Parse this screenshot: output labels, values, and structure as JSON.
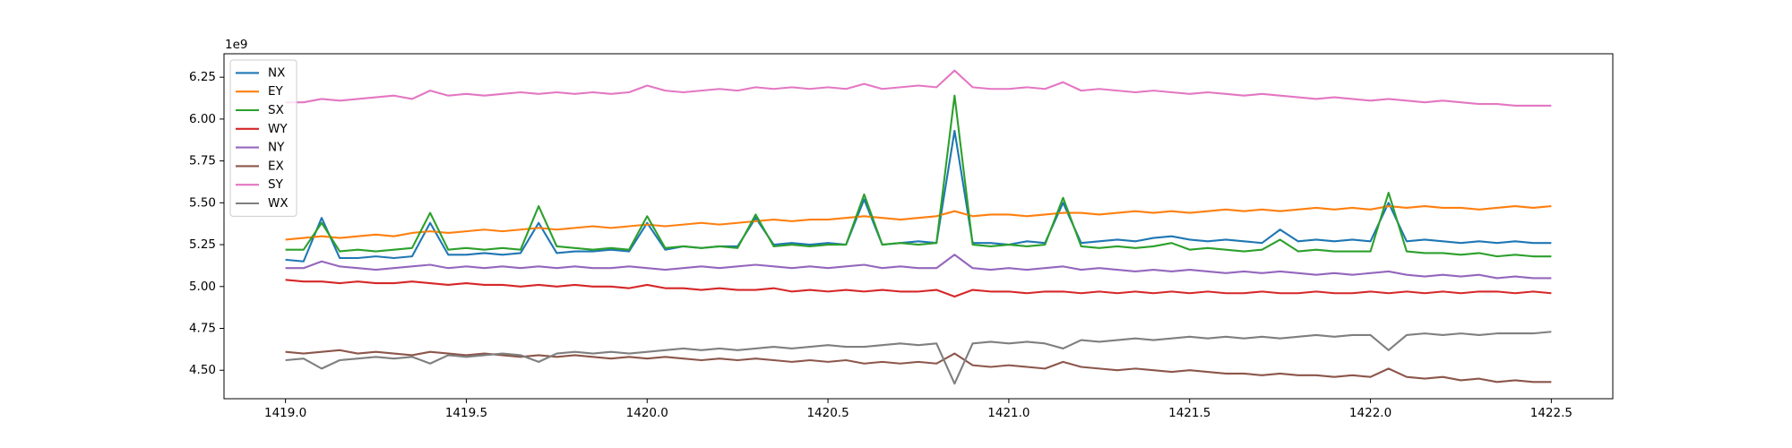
{
  "chart_data": {
    "type": "line",
    "offset_label": "1e9",
    "x": [
      1419.0,
      1419.05,
      1419.1,
      1419.15,
      1419.2,
      1419.25,
      1419.3,
      1419.35,
      1419.4,
      1419.45,
      1419.5,
      1419.55,
      1419.6,
      1419.65,
      1419.7,
      1419.75,
      1419.8,
      1419.85,
      1419.9,
      1419.95,
      1420.0,
      1420.05,
      1420.1,
      1420.15,
      1420.2,
      1420.25,
      1420.3,
      1420.35,
      1420.4,
      1420.45,
      1420.5,
      1420.55,
      1420.6,
      1420.65,
      1420.7,
      1420.75,
      1420.8,
      1420.85,
      1420.9,
      1420.95,
      1421.0,
      1421.05,
      1421.1,
      1421.15,
      1421.2,
      1421.25,
      1421.3,
      1421.35,
      1421.4,
      1421.45,
      1421.5,
      1421.55,
      1421.6,
      1421.65,
      1421.7,
      1421.75,
      1421.8,
      1421.85,
      1421.9,
      1421.95,
      1422.0,
      1422.05,
      1422.1,
      1422.15,
      1422.2,
      1422.25,
      1422.3,
      1422.35,
      1422.4,
      1422.45,
      1422.5
    ],
    "series": [
      {
        "name": "NX",
        "color": "#1f77b4",
        "values": [
          5.16,
          5.15,
          5.41,
          5.17,
          5.17,
          5.18,
          5.17,
          5.18,
          5.38,
          5.19,
          5.19,
          5.2,
          5.19,
          5.2,
          5.38,
          5.2,
          5.21,
          5.21,
          5.22,
          5.21,
          5.38,
          5.22,
          5.24,
          5.23,
          5.24,
          5.24,
          5.41,
          5.25,
          5.26,
          5.25,
          5.26,
          5.25,
          5.52,
          5.25,
          5.26,
          5.27,
          5.26,
          5.93,
          5.26,
          5.26,
          5.25,
          5.27,
          5.26,
          5.5,
          5.26,
          5.27,
          5.28,
          5.27,
          5.29,
          5.3,
          5.28,
          5.27,
          5.28,
          5.27,
          5.26,
          5.34,
          5.27,
          5.28,
          5.27,
          5.28,
          5.27,
          5.5,
          5.27,
          5.28,
          5.27,
          5.26,
          5.27,
          5.26,
          5.27,
          5.26,
          5.26
        ]
      },
      {
        "name": "EY",
        "color": "#ff7f0e",
        "values": [
          5.28,
          5.29,
          5.3,
          5.29,
          5.3,
          5.31,
          5.3,
          5.32,
          5.33,
          5.32,
          5.33,
          5.34,
          5.33,
          5.34,
          5.35,
          5.34,
          5.35,
          5.36,
          5.35,
          5.36,
          5.37,
          5.36,
          5.37,
          5.38,
          5.37,
          5.38,
          5.39,
          5.4,
          5.39,
          5.4,
          5.4,
          5.41,
          5.42,
          5.41,
          5.4,
          5.41,
          5.42,
          5.45,
          5.42,
          5.43,
          5.43,
          5.42,
          5.43,
          5.44,
          5.44,
          5.43,
          5.44,
          5.45,
          5.44,
          5.45,
          5.44,
          5.45,
          5.46,
          5.45,
          5.46,
          5.45,
          5.46,
          5.47,
          5.46,
          5.47,
          5.46,
          5.48,
          5.47,
          5.48,
          5.47,
          5.47,
          5.46,
          5.47,
          5.48,
          5.47,
          5.48
        ]
      },
      {
        "name": "SX",
        "color": "#2ca02c",
        "values": [
          5.22,
          5.22,
          5.38,
          5.21,
          5.22,
          5.21,
          5.22,
          5.23,
          5.44,
          5.22,
          5.23,
          5.22,
          5.23,
          5.22,
          5.48,
          5.24,
          5.23,
          5.22,
          5.23,
          5.22,
          5.42,
          5.23,
          5.24,
          5.23,
          5.24,
          5.23,
          5.43,
          5.24,
          5.25,
          5.24,
          5.25,
          5.25,
          5.55,
          5.25,
          5.26,
          5.25,
          5.26,
          6.14,
          5.25,
          5.24,
          5.25,
          5.24,
          5.25,
          5.53,
          5.24,
          5.23,
          5.24,
          5.23,
          5.24,
          5.26,
          5.22,
          5.23,
          5.22,
          5.21,
          5.22,
          5.28,
          5.21,
          5.22,
          5.21,
          5.21,
          5.21,
          5.56,
          5.21,
          5.2,
          5.2,
          5.19,
          5.2,
          5.18,
          5.19,
          5.18,
          5.18
        ]
      },
      {
        "name": "WY",
        "color": "#d62728",
        "values": [
          5.04,
          5.03,
          5.03,
          5.02,
          5.03,
          5.02,
          5.02,
          5.03,
          5.02,
          5.01,
          5.02,
          5.01,
          5.01,
          5.0,
          5.01,
          5.0,
          5.01,
          5.0,
          5.0,
          4.99,
          5.01,
          4.99,
          4.99,
          4.98,
          4.99,
          4.98,
          4.98,
          4.99,
          4.97,
          4.98,
          4.97,
          4.98,
          4.97,
          4.98,
          4.97,
          4.97,
          4.98,
          4.94,
          4.98,
          4.97,
          4.97,
          4.96,
          4.97,
          4.97,
          4.96,
          4.97,
          4.96,
          4.97,
          4.96,
          4.97,
          4.96,
          4.97,
          4.96,
          4.96,
          4.97,
          4.96,
          4.96,
          4.97,
          4.96,
          4.96,
          4.97,
          4.96,
          4.97,
          4.96,
          4.97,
          4.96,
          4.97,
          4.97,
          4.96,
          4.97,
          4.96
        ]
      },
      {
        "name": "NY",
        "color": "#9467bd",
        "values": [
          5.11,
          5.11,
          5.15,
          5.12,
          5.11,
          5.1,
          5.11,
          5.12,
          5.13,
          5.11,
          5.12,
          5.11,
          5.12,
          5.11,
          5.12,
          5.11,
          5.12,
          5.11,
          5.11,
          5.12,
          5.11,
          5.1,
          5.11,
          5.12,
          5.11,
          5.12,
          5.13,
          5.12,
          5.11,
          5.12,
          5.11,
          5.12,
          5.13,
          5.11,
          5.12,
          5.11,
          5.11,
          5.19,
          5.11,
          5.1,
          5.11,
          5.1,
          5.11,
          5.12,
          5.1,
          5.11,
          5.1,
          5.09,
          5.1,
          5.09,
          5.1,
          5.09,
          5.08,
          5.09,
          5.08,
          5.09,
          5.08,
          5.07,
          5.08,
          5.07,
          5.08,
          5.09,
          5.07,
          5.06,
          5.07,
          5.06,
          5.07,
          5.05,
          5.06,
          5.05,
          5.05
        ]
      },
      {
        "name": "EX",
        "color": "#8c564b",
        "values": [
          4.61,
          4.6,
          4.61,
          4.62,
          4.6,
          4.61,
          4.6,
          4.59,
          4.61,
          4.6,
          4.59,
          4.6,
          4.59,
          4.58,
          4.59,
          4.58,
          4.59,
          4.58,
          4.57,
          4.58,
          4.57,
          4.58,
          4.57,
          4.56,
          4.57,
          4.56,
          4.57,
          4.56,
          4.55,
          4.56,
          4.55,
          4.56,
          4.54,
          4.55,
          4.54,
          4.55,
          4.54,
          4.6,
          4.53,
          4.52,
          4.53,
          4.52,
          4.51,
          4.55,
          4.52,
          4.51,
          4.5,
          4.51,
          4.5,
          4.49,
          4.5,
          4.49,
          4.48,
          4.48,
          4.47,
          4.48,
          4.47,
          4.47,
          4.46,
          4.47,
          4.46,
          4.51,
          4.46,
          4.45,
          4.46,
          4.44,
          4.45,
          4.43,
          4.44,
          4.43,
          4.43
        ]
      },
      {
        "name": "SY",
        "color": "#e377c2",
        "values": [
          6.1,
          6.1,
          6.12,
          6.11,
          6.12,
          6.13,
          6.14,
          6.12,
          6.17,
          6.14,
          6.15,
          6.14,
          6.15,
          6.16,
          6.15,
          6.16,
          6.15,
          6.16,
          6.15,
          6.16,
          6.2,
          6.17,
          6.16,
          6.17,
          6.18,
          6.17,
          6.19,
          6.18,
          6.19,
          6.18,
          6.19,
          6.18,
          6.21,
          6.18,
          6.19,
          6.2,
          6.19,
          6.29,
          6.19,
          6.18,
          6.18,
          6.19,
          6.18,
          6.22,
          6.17,
          6.18,
          6.17,
          6.16,
          6.17,
          6.16,
          6.15,
          6.16,
          6.15,
          6.14,
          6.15,
          6.14,
          6.13,
          6.12,
          6.13,
          6.12,
          6.11,
          6.12,
          6.11,
          6.1,
          6.11,
          6.1,
          6.09,
          6.09,
          6.08,
          6.08,
          6.08
        ]
      },
      {
        "name": "WX",
        "color": "#7f7f7f",
        "values": [
          4.56,
          4.57,
          4.51,
          4.56,
          4.57,
          4.58,
          4.57,
          4.58,
          4.54,
          4.59,
          4.58,
          4.59,
          4.6,
          4.59,
          4.55,
          4.6,
          4.61,
          4.6,
          4.61,
          4.6,
          4.61,
          4.62,
          4.63,
          4.62,
          4.63,
          4.62,
          4.63,
          4.64,
          4.63,
          4.64,
          4.65,
          4.64,
          4.64,
          4.65,
          4.66,
          4.65,
          4.66,
          4.42,
          4.66,
          4.67,
          4.66,
          4.67,
          4.66,
          4.63,
          4.68,
          4.67,
          4.68,
          4.69,
          4.68,
          4.69,
          4.7,
          4.69,
          4.7,
          4.69,
          4.7,
          4.69,
          4.7,
          4.71,
          4.7,
          4.71,
          4.71,
          4.62,
          4.71,
          4.72,
          4.71,
          4.72,
          4.71,
          4.72,
          4.72,
          4.72,
          4.73
        ]
      }
    ],
    "xlim": [
      1418.83,
      1422.67
    ],
    "ylim": [
      4.33,
      6.39
    ],
    "xticks": [
      {
        "value": 1419.0,
        "label": "1419.0"
      },
      {
        "value": 1419.5,
        "label": "1419.5"
      },
      {
        "value": 1420.0,
        "label": "1420.0"
      },
      {
        "value": 1420.5,
        "label": "1420.5"
      },
      {
        "value": 1421.0,
        "label": "1421.0"
      },
      {
        "value": 1421.5,
        "label": "1421.5"
      },
      {
        "value": 1422.0,
        "label": "1422.0"
      },
      {
        "value": 1422.5,
        "label": "1422.5"
      }
    ],
    "yticks": [
      {
        "value": 4.5,
        "label": "4.50"
      },
      4.75,
      {
        "value": 5.0,
        "label": "5.00"
      },
      5.25,
      {
        "value": 5.5,
        "label": "5.50"
      },
      5.75,
      {
        "value": 6.0,
        "label": "6.00"
      },
      6.25
    ],
    "grid": false,
    "legend": "upper left"
  }
}
